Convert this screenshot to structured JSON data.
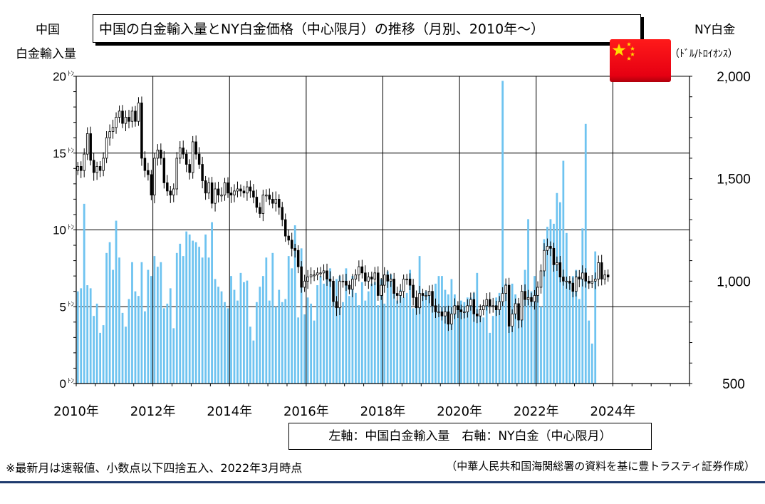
{
  "title": "中国の白金輸入量とNY白金価格（中心限月）の推移（月別、2010年～）",
  "left_axis_title": [
    "中国",
    "白金輸入量"
  ],
  "right_axis_title": [
    "NY白金",
    "（ﾄﾞﾙ/ﾄﾛｲｵﾝｽ）"
  ],
  "legend_text": "左軸：中国白金輸入量　右軸：NY白金（中心限月）",
  "footnote": "※最新月は速報値、小数点以下四捨五入、2022年3月時点",
  "source": "（中華人民共和国海関総署の資料を基に豊トラスティ証券作成）",
  "flag_icon": "china-flag-icon",
  "chart_data": {
    "type": "bar+candlestick",
    "title": "中国の白金輸入量とNY白金価格（中心限月）の推移（月別、2010年～）",
    "x_ticks": [
      "2010年",
      "2012年",
      "2014年",
      "2016年",
      "2018年",
      "2020年",
      "2022年",
      "2024年"
    ],
    "x_range": [
      "2010-01",
      "2025-12"
    ],
    "left_axis": {
      "label": "中国 白金輸入量",
      "unit": "ﾄﾝ",
      "ylim": [
        0,
        20
      ],
      "ticks": [
        0,
        5,
        10,
        15,
        20
      ],
      "tick_labels": [
        "0ﾄﾝ",
        "5ﾄﾝ",
        "10ﾄﾝ",
        "15ﾄﾝ",
        "20ﾄﾝ"
      ]
    },
    "right_axis": {
      "label": "NY白金",
      "unit": "ﾄﾞﾙ/ﾄﾛｲｵﾝｽ",
      "ylim": [
        500,
        2000
      ],
      "ticks": [
        500,
        1000,
        1500,
        2000
      ],
      "tick_labels": [
        "500",
        "1,000",
        "1,500",
        "2,000"
      ]
    },
    "grid": true,
    "bar_color": "#6ec3f0",
    "up_color": "#ffffff",
    "down_color": "#000000",
    "imports_start": "2010-01",
    "imports_tonnes": [
      6.0,
      6.2,
      11.7,
      6.4,
      6.2,
      4.4,
      5.2,
      3.3,
      3.8,
      8.5,
      9.2,
      7.4,
      10.6,
      8.2,
      4.6,
      3.7,
      5.5,
      7.9,
      6.0,
      5.7,
      7.9,
      4.7,
      7.4,
      7.0,
      8.3,
      7.6,
      7.9,
      4.9,
      5.2,
      6.2,
      3.6,
      8.5,
      9.1,
      8.3,
      9.9,
      9.7,
      9.3,
      9.2,
      8.9,
      8.2,
      9.7,
      8.2,
      10.5,
      6.8,
      6.3,
      6.0,
      5.3,
      4.9,
      7.0,
      6.1,
      5.4,
      7.2,
      6.6,
      6.7,
      3.7,
      2.8,
      5.3,
      6.3,
      7.0,
      8.2,
      5.4,
      8.5,
      5.0,
      6.1,
      5.3,
      5.5,
      8.3,
      7.5,
      10.3,
      4.3,
      8.8,
      4.5,
      5.6,
      5.2,
      4.1,
      6.4,
      7.0,
      6.5,
      6.8,
      7.5,
      5.4,
      6.8,
      7.0,
      5.3,
      7.5,
      5.7,
      7.0,
      5.9,
      5.1,
      6.6,
      5.4,
      6.0,
      6.5,
      6.6,
      5.1,
      6.8,
      5.2,
      7.3,
      7.1,
      5.9,
      5.4,
      6.1,
      5.6,
      5.9,
      7.4,
      4.9,
      5.2,
      8.3,
      5.8,
      6.0,
      5.9,
      5.5,
      6.5,
      7.0,
      7.0,
      6.1,
      5.8,
      6.8,
      5.8,
      4.8,
      5.4,
      5.3,
      5.6,
      5.6,
      5.9,
      7.2,
      4.7,
      4.3,
      5.1,
      3.3,
      4.4,
      5.6,
      5.9,
      19.7,
      6.5,
      3.7,
      6.5,
      5.8,
      4.7,
      5.2,
      7.4,
      10.7,
      6.0,
      7.0,
      6.0,
      5.0,
      9.4,
      10.2,
      10.7,
      10.4,
      12.4,
      11.8,
      14.5,
      9.8,
      6.6,
      7.0,
      7.4,
      5.5,
      10.1,
      16.9,
      4.1,
      2.6,
      8.6
    ],
    "price_start": "2010-01",
    "price_close": [
      1560,
      1540,
      1620,
      1720,
      1590,
      1530,
      1560,
      1540,
      1600,
      1700,
      1730,
      1750,
      1800,
      1830,
      1770,
      1800,
      1780,
      1830,
      1780,
      1870,
      1600,
      1540,
      1520,
      1420,
      1600,
      1640,
      1600,
      1480,
      1440,
      1420,
      1450,
      1600,
      1650,
      1620,
      1570,
      1530,
      1680,
      1620,
      1570,
      1490,
      1430,
      1480,
      1380,
      1450,
      1420,
      1420,
      1480,
      1430,
      1420,
      1440,
      1450,
      1440,
      1430,
      1460,
      1440,
      1410,
      1360,
      1330,
      1420,
      1420,
      1400,
      1380,
      1400,
      1360,
      1300,
      1220,
      1200,
      1160,
      1150,
      1070,
      970,
      1000,
      1020,
      1030,
      1030,
      1040,
      1040,
      1050,
      1010,
      1000,
      900,
      870,
      1000,
      1000,
      980,
      960,
      1010,
      1030,
      1070,
      1040,
      1000,
      1020,
      1010,
      1040,
      930,
      980,
      1030,
      1000,
      1010,
      940,
      930,
      950,
      1010,
      1010,
      980,
      920,
      870,
      940,
      930,
      930,
      950,
      880,
      850,
      850,
      830,
      850,
      790,
      840,
      880,
      860,
      850,
      850,
      880,
      910,
      840,
      830,
      860,
      880,
      910,
      880,
      880,
      860,
      900,
      940,
      980,
      780,
      840,
      890,
      810,
      950,
      910,
      920,
      900,
      930,
      970,
      1050,
      1150,
      1170,
      1160,
      1080,
      1090,
      1020,
      1000,
      1000,
      990,
      950,
      1020,
      1010,
      1040,
      1000,
      990,
      1000,
      1010,
      1090,
      1010,
      1030,
      1020
    ]
  }
}
